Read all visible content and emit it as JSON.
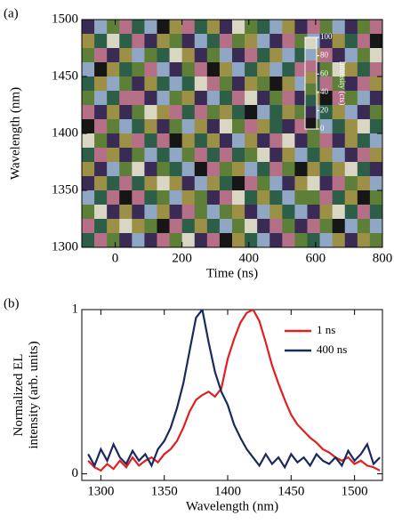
{
  "chart_data": [
    {
      "type": "heatmap",
      "panel_label": "(a)",
      "x_label": "Time (ns)",
      "y_label": "Wavelength (nm)",
      "xlim": [
        -100,
        800
      ],
      "xticks": [
        0,
        200,
        400,
        600,
        800
      ],
      "ylim": [
        1300,
        1500
      ],
      "yticks": [
        1300,
        1350,
        1400,
        1450,
        1500
      ],
      "colorbar_label": "Intensity (cts)",
      "colorbar_lim": [
        0,
        100
      ],
      "colorbar_ticks": [
        0,
        20,
        40,
        60,
        80,
        100
      ],
      "colormap": [
        "#161616",
        "#3a2b55",
        "#2c5e48",
        "#5d7f38",
        "#9c8f46",
        "#b56f86",
        "#8fa6c4",
        "#d9d6c4"
      ],
      "z": [
        [
          12,
          85,
          43,
          67,
          29,
          91,
          5,
          58,
          74,
          33,
          62,
          18,
          97,
          41,
          26,
          79,
          53,
          8,
          66,
          37,
          88,
          21,
          49,
          72
        ],
        [
          57,
          23,
          94,
          31,
          76,
          14,
          63,
          45,
          9,
          82,
          27,
          71,
          36,
          55,
          90,
          13,
          68,
          40,
          84,
          19,
          61,
          34,
          77,
          6
        ],
        [
          38,
          70,
          16,
          52,
          87,
          44,
          25,
          99,
          61,
          20,
          48,
          83,
          11,
          73,
          35,
          58,
          92,
          27,
          50,
          65,
          15,
          81,
          42,
          95
        ],
        [
          81,
          4,
          60,
          28,
          39,
          73,
          90,
          17,
          46,
          68,
          3,
          54,
          79,
          22,
          64,
          88,
          31,
          75,
          12,
          47,
          93,
          56,
          24,
          69
        ],
        [
          26,
          64,
          83,
          47,
          11,
          56,
          34,
          80,
          22,
          95,
          71,
          39,
          14,
          60,
          45,
          7,
          52,
          86,
          33,
          78,
          41,
          10,
          67,
          53
        ],
        [
          49,
          92,
          30,
          74,
          65,
          20,
          88,
          38,
          57,
          13,
          86,
          25,
          69,
          94,
          16,
          43,
          77,
          21,
          59,
          2,
          70,
          37,
          89,
          15
        ],
        [
          73,
          18,
          55,
          9,
          42,
          97,
          51,
          66,
          30,
          76,
          40,
          61,
          32,
          7,
          83,
          28,
          63,
          48,
          91,
          25,
          54,
          84,
          19,
          44
        ],
        [
          6,
          67,
          36,
          89,
          24,
          61,
          14,
          43,
          85,
          52,
          19,
          93,
          46,
          74,
          57,
          35,
          9,
          70,
          38,
          81,
          29,
          62,
          96,
          31
        ],
        [
          94,
          40,
          21,
          58,
          78,
          33,
          72,
          5,
          63,
          27,
          59,
          12,
          87,
          50,
          20,
          66,
          97,
          16,
          45,
          71,
          8,
          50,
          35,
          80
        ],
        [
          35,
          77,
          62,
          15,
          49,
          84,
          28,
          91,
          41,
          69,
          34,
          78,
          23,
          38,
          96,
          11,
          55,
          82,
          26,
          60,
          87,
          18,
          73,
          57
        ],
        [
          60,
          13,
          86,
          44,
          96,
          8,
          47,
          24,
          79,
          3,
          65,
          45,
          58,
          85,
          31,
          74,
          42,
          6,
          64,
          34,
          51,
          93,
          27,
          10
        ],
        [
          17,
          54,
          29,
          71,
          35,
          62,
          93,
          56,
          18,
          88,
          50,
          29,
          2,
          67,
          48,
          90,
          20,
          58,
          99,
          13,
          75,
          39,
          61,
          86
        ],
        [
          88,
          31,
          75,
          3,
          68,
          26,
          40,
          82,
          53,
          36,
          14,
          72,
          95,
          27,
          62,
          23,
          81,
          37,
          47,
          68,
          22,
          64,
          4,
          48
        ],
        [
          42,
          96,
          8,
          59,
          19,
          80,
          61,
          11,
          70,
          47,
          92,
          37,
          56,
          16,
          79,
          54,
          28,
          89,
          15,
          53,
          97,
          30,
          76,
          23
        ],
        [
          65,
          22,
          51,
          93,
          54,
          37,
          6,
          74,
          32,
          60,
          25,
          84,
          41,
          98,
          9,
          67,
          46,
          12,
          72,
          39,
          6,
          85,
          45,
          91
        ],
        [
          28,
          69,
          45,
          20,
          83,
          12,
          77,
          48,
          95,
          14,
          78,
          5,
          64,
          33,
          87,
          18,
          71,
          44,
          29,
          90,
          58,
          14,
          55,
          37
        ]
      ]
    },
    {
      "type": "line",
      "panel_label": "(b)",
      "x_label": "Wavelength (nm)",
      "y_label": [
        "Normalized EL",
        "intensity (arb. units)"
      ],
      "xlim": [
        1285,
        1522
      ],
      "xticks": [
        1300,
        1350,
        1400,
        1450,
        1500
      ],
      "ylim": [
        -0.04,
        1
      ],
      "yticks": [
        0,
        1
      ],
      "legend": "top-right",
      "x": [
        1290,
        1295,
        1300,
        1305,
        1310,
        1315,
        1320,
        1325,
        1330,
        1335,
        1340,
        1345,
        1350,
        1355,
        1360,
        1365,
        1370,
        1375,
        1380,
        1385,
        1390,
        1395,
        1400,
        1405,
        1410,
        1415,
        1420,
        1425,
        1430,
        1435,
        1440,
        1445,
        1450,
        1455,
        1460,
        1465,
        1470,
        1475,
        1480,
        1485,
        1490,
        1495,
        1500,
        1505,
        1510,
        1515,
        1520
      ],
      "series": [
        {
          "name": "1 ns",
          "color": "#e02020",
          "values": [
            0.08,
            0.04,
            0.02,
            0.06,
            0.03,
            0.08,
            0.04,
            0.1,
            0.05,
            0.08,
            0.1,
            0.07,
            0.12,
            0.15,
            0.2,
            0.28,
            0.38,
            0.45,
            0.48,
            0.5,
            0.47,
            0.52,
            0.7,
            0.82,
            0.92,
            0.98,
            1.0,
            0.93,
            0.8,
            0.66,
            0.55,
            0.45,
            0.36,
            0.3,
            0.26,
            0.22,
            0.19,
            0.15,
            0.13,
            0.1,
            0.08,
            0.1,
            0.06,
            0.08,
            0.05,
            0.04,
            0.02
          ]
        },
        {
          "name": "400 ns",
          "color": "#1a2a5e",
          "values": [
            0.12,
            0.05,
            0.15,
            0.08,
            0.18,
            0.1,
            0.06,
            0.14,
            0.08,
            0.12,
            0.05,
            0.15,
            0.2,
            0.28,
            0.4,
            0.55,
            0.75,
            0.95,
            1.0,
            0.8,
            0.62,
            0.5,
            0.42,
            0.3,
            0.22,
            0.15,
            0.1,
            0.05,
            0.12,
            0.06,
            0.1,
            0.04,
            0.12,
            0.07,
            0.1,
            0.05,
            0.12,
            0.08,
            0.06,
            0.1,
            0.05,
            0.14,
            0.08,
            0.12,
            0.18,
            0.06,
            0.1
          ]
        }
      ]
    }
  ]
}
